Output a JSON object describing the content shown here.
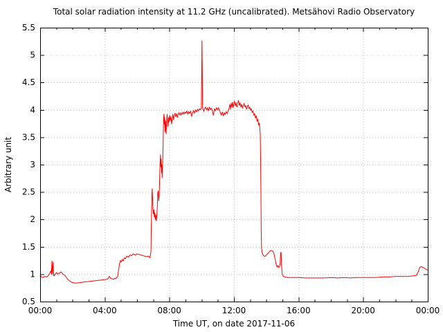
{
  "header": {
    "title": "Total solar radiation intensity at 11.2 GHz (uncalibrated). Metsähovi Radio Observatory"
  },
  "chart_data": {
    "type": "line",
    "title": "Total solar radiation intensity at 11.2 GHz (uncalibrated). Metsähovi Radio Observatory",
    "xlabel": "Time UT, on date 2017-11-06",
    "ylabel": "Arbitrary unit",
    "xlim_hours": [
      0,
      24
    ],
    "ylim": [
      0.5,
      5.5
    ],
    "x_major_ticks_hours": [
      0,
      4,
      8,
      12,
      16,
      20,
      24
    ],
    "xtick_labels": [
      "00:00",
      "04:00",
      "08:00",
      "12:00",
      "16:00",
      "20:00",
      "00:00"
    ],
    "x_minor_tick_interval_hours": 1,
    "y_major_ticks": [
      0.5,
      1,
      1.5,
      2,
      2.5,
      3,
      3.5,
      4,
      4.5,
      5,
      5.5
    ],
    "ytick_labels": [
      "0.5",
      "1",
      "1.5",
      "2",
      "2.5",
      "3",
      "3.5",
      "4",
      "4.5",
      "5",
      "5.5"
    ],
    "grid": true,
    "grid_style": "dotted",
    "legend": "none",
    "colors": {
      "line": "#ff0000",
      "grid": "#bbbbbb",
      "axis": "#000000",
      "background": "#ffffff"
    },
    "series": [
      {
        "name": "total solar radiation intensity (uncalibrated)",
        "color": "#ff0000",
        "points": [
          [
            0,
            0.97
          ],
          [
            0.06,
            0.96
          ],
          [
            0.12,
            0.94
          ],
          [
            0.22,
            0.95
          ],
          [
            0.32,
            0.96
          ],
          [
            0.42,
            0.95
          ],
          [
            0.52,
            0.98
          ],
          [
            0.6,
            1.02
          ],
          [
            0.66,
            1.06
          ],
          [
            0.7,
            1.0
          ],
          [
            0.73,
            1.24
          ],
          [
            0.76,
            1.0
          ],
          [
            0.8,
            1.22
          ],
          [
            0.84,
            0.97
          ],
          [
            0.92,
            0.99
          ],
          [
            1.0,
            1.03
          ],
          [
            1.1,
            1.0
          ],
          [
            1.2,
            1.02
          ],
          [
            1.3,
            1.04
          ],
          [
            1.42,
            1.0
          ],
          [
            1.55,
            0.97
          ],
          [
            1.7,
            0.91
          ],
          [
            1.9,
            0.86
          ],
          [
            2.1,
            0.84
          ],
          [
            2.3,
            0.84
          ],
          [
            2.55,
            0.85
          ],
          [
            2.8,
            0.86
          ],
          [
            3.1,
            0.87
          ],
          [
            3.4,
            0.88
          ],
          [
            3.7,
            0.89
          ],
          [
            4.0,
            0.9
          ],
          [
            4.18,
            0.91
          ],
          [
            4.28,
            0.96
          ],
          [
            4.38,
            0.92
          ],
          [
            4.55,
            0.91
          ],
          [
            4.72,
            0.93
          ],
          [
            4.8,
            0.96
          ],
          [
            4.86,
            1.08
          ],
          [
            4.92,
            1.2
          ],
          [
            4.97,
            1.25
          ],
          [
            5.02,
            1.22
          ],
          [
            5.08,
            1.27
          ],
          [
            5.14,
            1.24
          ],
          [
            5.22,
            1.3
          ],
          [
            5.28,
            1.28
          ],
          [
            5.36,
            1.33
          ],
          [
            5.46,
            1.31
          ],
          [
            5.56,
            1.35
          ],
          [
            5.66,
            1.34
          ],
          [
            5.76,
            1.37
          ],
          [
            5.88,
            1.35
          ],
          [
            6.0,
            1.37
          ],
          [
            6.12,
            1.36
          ],
          [
            6.24,
            1.35
          ],
          [
            6.36,
            1.34
          ],
          [
            6.48,
            1.33
          ],
          [
            6.6,
            1.32
          ],
          [
            6.7,
            1.33
          ],
          [
            6.8,
            1.3
          ],
          [
            6.86,
            1.42
          ],
          [
            6.88,
            1.8
          ],
          [
            6.9,
            2.15
          ],
          [
            6.92,
            2.45
          ],
          [
            6.94,
            2.56
          ],
          [
            6.96,
            2.38
          ],
          [
            6.98,
            2.18
          ],
          [
            7.01,
            2.1
          ],
          [
            7.04,
            2.18
          ],
          [
            7.07,
            2.04
          ],
          [
            7.1,
            2.12
          ],
          [
            7.13,
            2.0
          ],
          [
            7.16,
            2.08
          ],
          [
            7.19,
            1.97
          ],
          [
            7.22,
            2.06
          ],
          [
            7.25,
            2.2
          ],
          [
            7.28,
            2.48
          ],
          [
            7.31,
            2.52
          ],
          [
            7.34,
            2.34
          ],
          [
            7.37,
            2.44
          ],
          [
            7.39,
            2.62
          ],
          [
            7.41,
            2.88
          ],
          [
            7.43,
            3.08
          ],
          [
            7.45,
            3.18
          ],
          [
            7.47,
            2.96
          ],
          [
            7.49,
            3.1
          ],
          [
            7.51,
            2.86
          ],
          [
            7.53,
            3.0
          ],
          [
            7.55,
            2.76
          ],
          [
            7.57,
            2.92
          ],
          [
            7.59,
            3.06
          ],
          [
            7.61,
            3.32
          ],
          [
            7.63,
            3.62
          ],
          [
            7.65,
            3.88
          ],
          [
            7.67,
            3.92
          ],
          [
            7.69,
            3.74
          ],
          [
            7.71,
            3.86
          ],
          [
            7.74,
            3.6
          ],
          [
            7.77,
            3.8
          ],
          [
            7.8,
            3.56
          ],
          [
            7.83,
            3.78
          ],
          [
            7.86,
            3.92
          ],
          [
            7.89,
            3.8
          ],
          [
            7.92,
            3.7
          ],
          [
            7.95,
            3.86
          ],
          [
            7.98,
            3.78
          ],
          [
            8.02,
            3.9
          ],
          [
            8.06,
            3.8
          ],
          [
            8.1,
            3.88
          ],
          [
            8.14,
            3.74
          ],
          [
            8.18,
            3.84
          ],
          [
            8.22,
            3.92
          ],
          [
            8.26,
            3.82
          ],
          [
            8.3,
            3.89
          ],
          [
            8.35,
            3.94
          ],
          [
            8.4,
            3.87
          ],
          [
            8.45,
            3.93
          ],
          [
            8.5,
            3.86
          ],
          [
            8.55,
            3.92
          ],
          [
            8.6,
            3.95
          ],
          [
            8.66,
            3.9
          ],
          [
            8.72,
            3.95
          ],
          [
            8.78,
            3.91
          ],
          [
            8.84,
            3.96
          ],
          [
            8.9,
            3.92
          ],
          [
            8.96,
            3.96
          ],
          [
            9.02,
            3.94
          ],
          [
            9.08,
            3.98
          ],
          [
            9.14,
            3.92
          ],
          [
            9.2,
            3.97
          ],
          [
            9.26,
            3.93
          ],
          [
            9.32,
            3.98
          ],
          [
            9.38,
            3.88
          ],
          [
            9.44,
            3.95
          ],
          [
            9.5,
            3.99
          ],
          [
            9.56,
            3.94
          ],
          [
            9.62,
            4.0
          ],
          [
            9.68,
            3.96
          ],
          [
            9.74,
            4.01
          ],
          [
            9.8,
            3.98
          ],
          [
            9.86,
            4.02
          ],
          [
            9.92,
            4.0
          ],
          [
            9.98,
            4.03
          ],
          [
            10.02,
            5.26
          ],
          [
            10.06,
            4.04
          ],
          [
            10.1,
            4.0
          ],
          [
            10.14,
            3.97
          ],
          [
            10.18,
            4.02
          ],
          [
            10.24,
            4.05
          ],
          [
            10.3,
            4.0
          ],
          [
            10.36,
            4.04
          ],
          [
            10.42,
            3.98
          ],
          [
            10.48,
            4.05
          ],
          [
            10.54,
            4.0
          ],
          [
            10.6,
            4.03
          ],
          [
            10.66,
            3.99
          ],
          [
            10.72,
            3.9
          ],
          [
            10.76,
            3.96
          ],
          [
            10.8,
            4.02
          ],
          [
            10.86,
            3.98
          ],
          [
            10.92,
            4.04
          ],
          [
            10.98,
            4.0
          ],
          [
            11.04,
            4.04
          ],
          [
            11.1,
            3.99
          ],
          [
            11.16,
            3.95
          ],
          [
            11.22,
            3.9
          ],
          [
            11.28,
            3.96
          ],
          [
            11.34,
            3.89
          ],
          [
            11.4,
            3.95
          ],
          [
            11.46,
            3.91
          ],
          [
            11.52,
            3.97
          ],
          [
            11.58,
            3.93
          ],
          [
            11.64,
            3.98
          ],
          [
            11.7,
            4.03
          ],
          [
            11.75,
            4.1
          ],
          [
            11.79,
            4.01
          ],
          [
            11.83,
            4.12
          ],
          [
            11.87,
            4.05
          ],
          [
            11.91,
            4.14
          ],
          [
            11.95,
            4.04
          ],
          [
            11.99,
            4.11
          ],
          [
            12.03,
            4.16
          ],
          [
            12.08,
            4.07
          ],
          [
            12.13,
            4.13
          ],
          [
            12.18,
            4.05
          ],
          [
            12.23,
            4.12
          ],
          [
            12.28,
            4.17
          ],
          [
            12.33,
            4.08
          ],
          [
            12.38,
            4.13
          ],
          [
            12.43,
            4.05
          ],
          [
            12.48,
            4.1
          ],
          [
            12.53,
            4.03
          ],
          [
            12.58,
            4.08
          ],
          [
            12.63,
            4.12
          ],
          [
            12.68,
            4.05
          ],
          [
            12.73,
            4.08
          ],
          [
            12.78,
            4.01
          ],
          [
            12.83,
            4.06
          ],
          [
            12.88,
            4.09
          ],
          [
            12.93,
            4.02
          ],
          [
            12.98,
            4.05
          ],
          [
            13.03,
            3.99
          ],
          [
            13.08,
            4.02
          ],
          [
            13.13,
            3.95
          ],
          [
            13.18,
            3.98
          ],
          [
            13.23,
            3.9
          ],
          [
            13.28,
            3.93
          ],
          [
            13.33,
            3.85
          ],
          [
            13.38,
            3.89
          ],
          [
            13.43,
            3.79
          ],
          [
            13.48,
            3.83
          ],
          [
            13.53,
            3.72
          ],
          [
            13.57,
            3.76
          ],
          [
            13.6,
            3.66
          ],
          [
            13.63,
            3.55
          ],
          [
            13.65,
            3.1
          ],
          [
            13.67,
            2.4
          ],
          [
            13.69,
            1.75
          ],
          [
            13.71,
            1.46
          ],
          [
            13.75,
            1.39
          ],
          [
            13.8,
            1.35
          ],
          [
            13.87,
            1.33
          ],
          [
            13.95,
            1.33
          ],
          [
            14.03,
            1.36
          ],
          [
            14.11,
            1.38
          ],
          [
            14.19,
            1.41
          ],
          [
            14.27,
            1.43
          ],
          [
            14.35,
            1.43
          ],
          [
            14.43,
            1.41
          ],
          [
            14.5,
            1.35
          ],
          [
            14.56,
            1.26
          ],
          [
            14.62,
            1.17
          ],
          [
            14.67,
            1.13
          ],
          [
            14.72,
            1.16
          ],
          [
            14.77,
            1.12
          ],
          [
            14.82,
            1.14
          ],
          [
            14.86,
            1.2
          ],
          [
            14.89,
            1.39
          ],
          [
            14.92,
            1.4
          ],
          [
            14.95,
            1.14
          ],
          [
            14.99,
            1.0
          ],
          [
            15.05,
            0.96
          ],
          [
            15.15,
            0.95
          ],
          [
            15.3,
            0.94
          ],
          [
            15.6,
            0.94
          ],
          [
            16.0,
            0.94
          ],
          [
            16.4,
            0.93
          ],
          [
            16.8,
            0.93
          ],
          [
            17.2,
            0.93
          ],
          [
            17.6,
            0.93
          ],
          [
            18.0,
            0.94
          ],
          [
            18.4,
            0.93
          ],
          [
            18.8,
            0.94
          ],
          [
            19.2,
            0.93
          ],
          [
            19.6,
            0.94
          ],
          [
            20.0,
            0.94
          ],
          [
            20.4,
            0.94
          ],
          [
            20.8,
            0.94
          ],
          [
            21.2,
            0.95
          ],
          [
            21.6,
            0.95
          ],
          [
            22.0,
            0.96
          ],
          [
            22.4,
            0.96
          ],
          [
            22.8,
            0.96
          ],
          [
            23.1,
            0.97
          ],
          [
            23.3,
            0.98
          ],
          [
            23.42,
            1.05
          ],
          [
            23.5,
            1.12
          ],
          [
            23.6,
            1.14
          ],
          [
            23.72,
            1.12
          ],
          [
            23.85,
            1.1
          ],
          [
            23.95,
            1.08
          ],
          [
            24.0,
            1.08
          ]
        ]
      }
    ]
  }
}
